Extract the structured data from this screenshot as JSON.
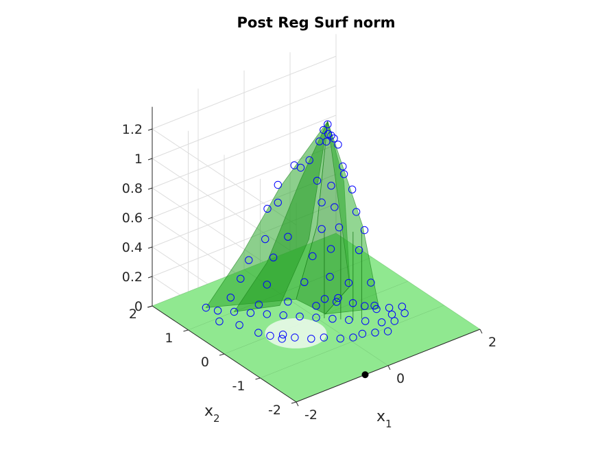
{
  "chart_data": {
    "type": "surface",
    "title": "Post Reg Surf norm",
    "xlabel": "x",
    "xlabel_sub": "1",
    "ylabel": "x",
    "ylabel_sub": "2",
    "xlim": [
      -2,
      2
    ],
    "ylim": [
      -2,
      2
    ],
    "zlim": [
      0,
      1.35
    ],
    "x_ticks": [
      -2,
      0,
      2
    ],
    "x_tick_labels": [
      "-2",
      "0",
      "2"
    ],
    "y_ticks": [
      -2,
      -1,
      0,
      1,
      2
    ],
    "y_tick_labels": [
      "-2",
      "-1",
      "0",
      "1",
      "2"
    ],
    "z_ticks": [
      0,
      0.2,
      0.4,
      0.6,
      0.8,
      1,
      1.2
    ],
    "z_tick_labels": [
      "0",
      "0.2",
      "0.4",
      "0.6",
      "0.8",
      "1",
      "1.2"
    ],
    "grid": true,
    "surface_color": "#22a022",
    "base_color": "#90e890",
    "marker_color": "#0000ff",
    "special_point_color": "#000000",
    "special_point": {
      "x": -0.5,
      "y": -2,
      "z": 0
    },
    "points": [
      [
        0.25,
        0,
        1.28
      ],
      [
        0.2,
        0.05,
        1.24
      ],
      [
        0.3,
        0.05,
        1.2
      ],
      [
        0.25,
        -0.1,
        1.22
      ],
      [
        0.35,
        -0.05,
        1.18
      ],
      [
        0.15,
        0.1,
        1.16
      ],
      [
        0.3,
        0.1,
        1.14
      ],
      [
        0.4,
        -0.1,
        1.14
      ],
      [
        -0.2,
        0.35,
        1.0
      ],
      [
        -0.1,
        0.3,
        0.98
      ],
      [
        0.05,
        0.25,
        1.02
      ],
      [
        0.5,
        -0.1,
        0.98
      ],
      [
        0.45,
        -0.2,
        0.95
      ],
      [
        -0.4,
        0.55,
        0.86
      ],
      [
        0.1,
        0.1,
        0.9
      ],
      [
        0.25,
        -0.1,
        0.88
      ],
      [
        0.55,
        -0.3,
        0.85
      ],
      [
        -0.55,
        0.65,
        0.7
      ],
      [
        -0.4,
        0.55,
        0.74
      ],
      [
        0.2,
        0.1,
        0.74
      ],
      [
        0.4,
        0.0,
        0.7
      ],
      [
        0.6,
        -0.35,
        0.7
      ],
      [
        -0.6,
        0.65,
        0.5
      ],
      [
        -0.3,
        0.4,
        0.52
      ],
      [
        0.2,
        0.1,
        0.56
      ],
      [
        0.5,
        0.0,
        0.55
      ],
      [
        0.7,
        -0.45,
        0.58
      ],
      [
        -0.8,
        0.85,
        0.35
      ],
      [
        -0.5,
        0.55,
        0.38
      ],
      [
        0.0,
        0.1,
        0.4
      ],
      [
        0.4,
        0.1,
        0.4
      ],
      [
        0.7,
        -0.3,
        0.42
      ],
      [
        -0.9,
        0.95,
        0.22
      ],
      [
        -0.6,
        0.6,
        0.2
      ],
      [
        -0.1,
        0.2,
        0.22
      ],
      [
        0.3,
        0.0,
        0.24
      ],
      [
        0.55,
        -0.2,
        0.2
      ],
      [
        0.8,
        -0.5,
        0.22
      ],
      [
        -1.0,
        1.1,
        0.08
      ],
      [
        -0.7,
        0.7,
        0.06
      ],
      [
        -0.3,
        0.4,
        0.08
      ],
      [
        0.0,
        0.0,
        0.08
      ],
      [
        0.4,
        -0.1,
        0.1
      ],
      [
        0.8,
        -0.6,
        0.08
      ],
      [
        -1.3,
        1.4,
        0
      ],
      [
        -1.2,
        1.2,
        0
      ],
      [
        -1.0,
        1.0,
        0
      ],
      [
        -0.8,
        0.8,
        0
      ],
      [
        -0.6,
        0.6,
        0
      ],
      [
        -0.4,
        0.4,
        0
      ],
      [
        -0.2,
        0.2,
        0
      ],
      [
        0.0,
        0.0,
        0
      ],
      [
        0.2,
        -0.2,
        0
      ],
      [
        0.4,
        -0.4,
        0
      ],
      [
        0.6,
        -0.6,
        0
      ],
      [
        0.8,
        -0.8,
        0
      ],
      [
        -0.9,
        -0.2,
        0
      ],
      [
        -0.7,
        -0.3,
        0
      ],
      [
        -0.5,
        -0.5,
        0
      ],
      [
        -0.3,
        -0.6,
        0
      ],
      [
        -0.1,
        -0.8,
        0
      ],
      [
        0.1,
        -0.9,
        0
      ],
      [
        -1.1,
        0.2,
        0
      ],
      [
        -1.0,
        0.0,
        0
      ],
      [
        -0.8,
        -0.1,
        0
      ],
      [
        0.3,
        -0.9,
        0
      ],
      [
        0.5,
        -1.0,
        0
      ],
      [
        0.7,
        -1.1,
        0
      ],
      [
        1.0,
        -0.9,
        0
      ],
      [
        1.1,
        -0.7,
        0
      ],
      [
        1.2,
        -0.5,
        0
      ],
      [
        1.0,
        -0.4,
        0
      ],
      [
        0.9,
        -0.2,
        0
      ],
      [
        0.8,
        0.0,
        0
      ],
      [
        1.3,
        -0.8,
        0
      ],
      [
        1.4,
        -0.6,
        0
      ],
      [
        0.6,
        0.2,
        0
      ],
      [
        0.5,
        0.4,
        0
      ],
      [
        -1.2,
        0.6,
        0
      ],
      [
        -1.4,
        0.9,
        0
      ]
    ]
  }
}
